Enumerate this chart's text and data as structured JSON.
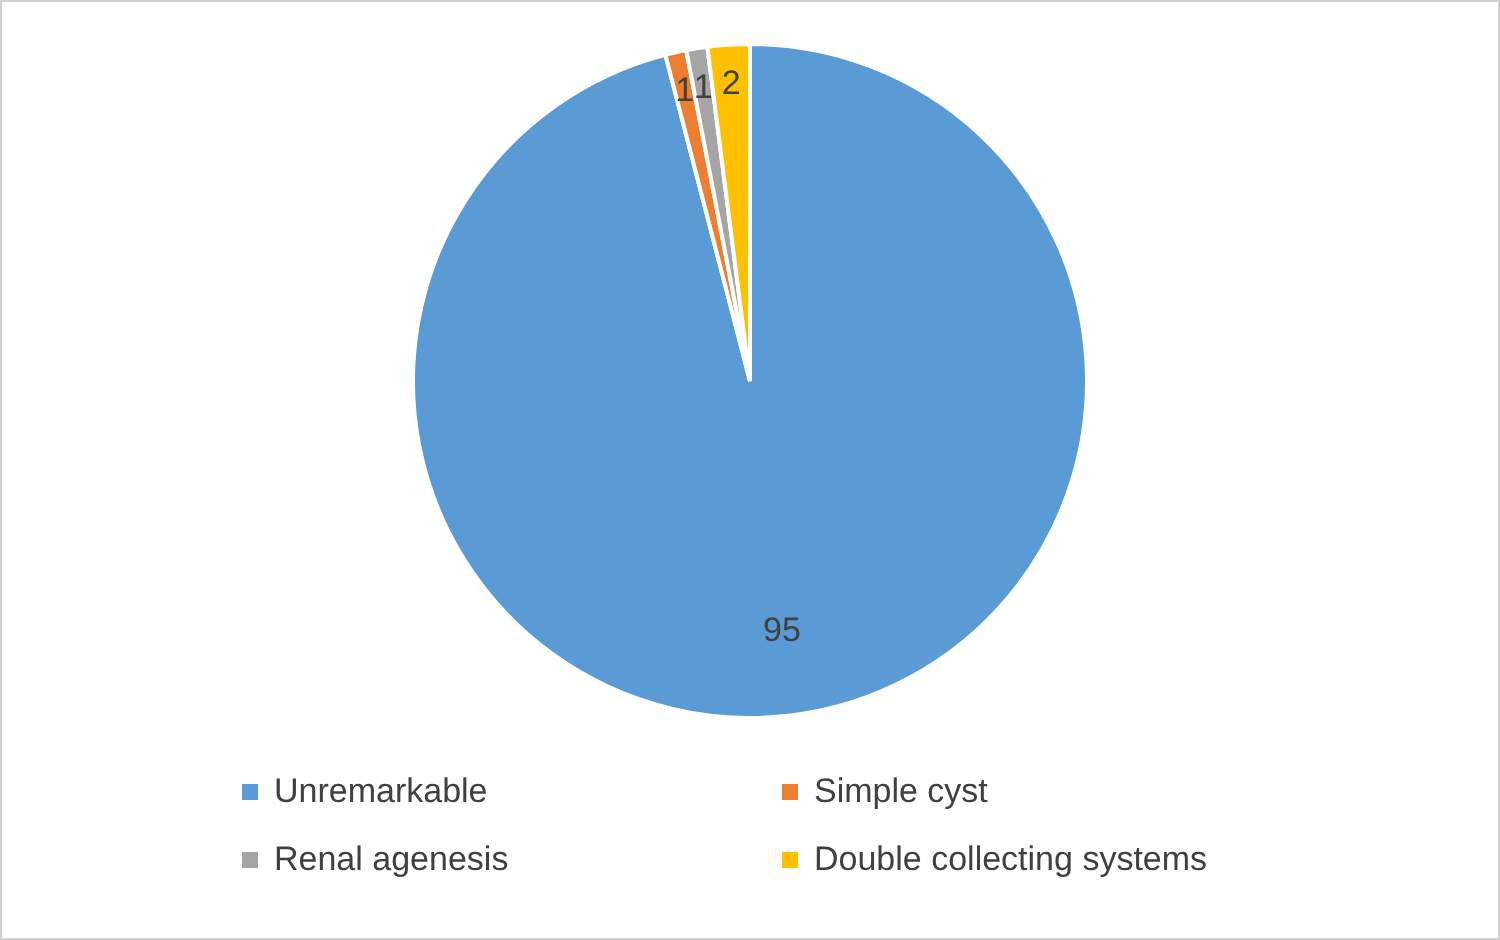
{
  "chart_data": {
    "type": "pie",
    "categories": [
      "Unremarkable",
      "Simple cyst",
      "Renal agenesis",
      "Double collecting systems"
    ],
    "values": [
      95,
      1,
      1,
      2
    ],
    "colors": [
      "#5b9bd5",
      "#ed7d31",
      "#a5a5a5",
      "#ffc000"
    ],
    "data_labels": true,
    "legend": "bottom"
  }
}
